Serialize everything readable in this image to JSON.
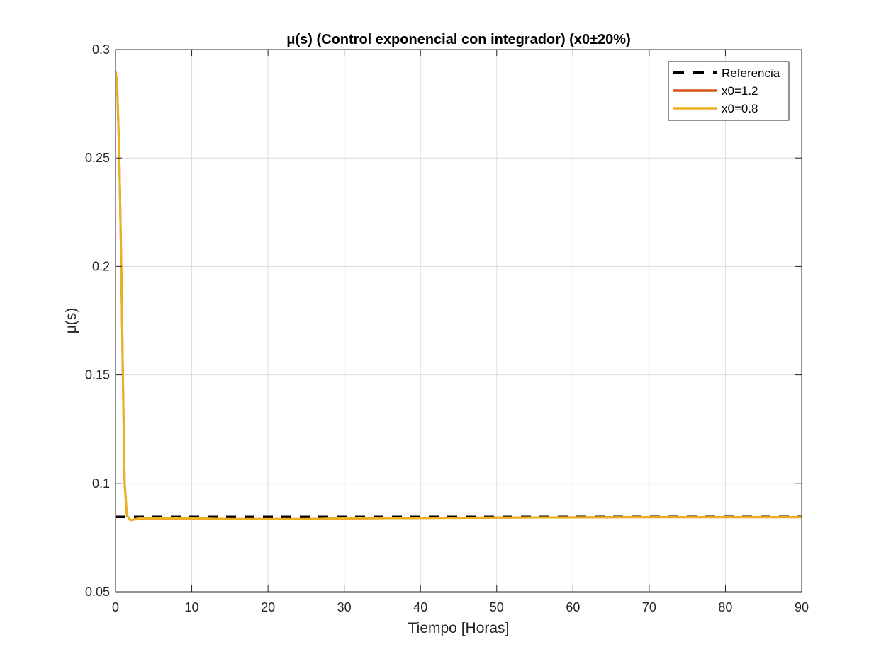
{
  "chart_data": {
    "type": "line",
    "title": "μ(s) (Control exponencial con integrador) (x0±20%)",
    "xlabel": "Tiempo [Horas]",
    "ylabel": "μ(s)",
    "xlim": [
      0,
      90
    ],
    "ylim": [
      0.05,
      0.3
    ],
    "xticks": [
      0,
      10,
      20,
      30,
      40,
      50,
      60,
      70,
      80,
      90
    ],
    "xtick_labels": [
      "0",
      "10",
      "20",
      "30",
      "40",
      "50",
      "60",
      "70",
      "80",
      "90"
    ],
    "yticks": [
      0.05,
      0.1,
      0.15,
      0.2,
      0.25,
      0.3
    ],
    "ytick_labels": [
      "0.05",
      "0.1",
      "0.15",
      "0.2",
      "0.25",
      "0.3"
    ],
    "grid": true,
    "legend_position": "top-right",
    "series": [
      {
        "name": "Referencia",
        "color": "#000000",
        "style": "dashed",
        "x": [
          0,
          90
        ],
        "y": [
          0.0845,
          0.0845
        ]
      },
      {
        "name": "x0=1.2",
        "color": "#D95319",
        "style": "solid",
        "x": [
          0,
          0.2,
          0.5,
          0.8,
          1.0,
          1.2,
          1.5,
          2,
          3,
          5,
          10,
          15,
          20,
          25,
          30,
          40,
          50,
          60,
          70,
          80,
          90
        ],
        "y": [
          0.29,
          0.285,
          0.25,
          0.19,
          0.14,
          0.1,
          0.085,
          0.083,
          0.0838,
          0.0838,
          0.0838,
          0.0835,
          0.0835,
          0.0835,
          0.0838,
          0.084,
          0.0842,
          0.0843,
          0.0844,
          0.0844,
          0.0844
        ]
      },
      {
        "name": "x0=0.8",
        "color": "#EDB120",
        "style": "solid",
        "x": [
          0,
          0.2,
          0.5,
          0.8,
          1.0,
          1.2,
          1.5,
          2,
          3,
          5,
          10,
          15,
          20,
          25,
          30,
          40,
          50,
          60,
          70,
          80,
          90
        ],
        "y": [
          0.29,
          0.285,
          0.25,
          0.19,
          0.14,
          0.1,
          0.085,
          0.083,
          0.0838,
          0.0838,
          0.0838,
          0.0835,
          0.0835,
          0.0835,
          0.0838,
          0.084,
          0.0842,
          0.0843,
          0.0844,
          0.0844,
          0.0844
        ]
      }
    ]
  }
}
